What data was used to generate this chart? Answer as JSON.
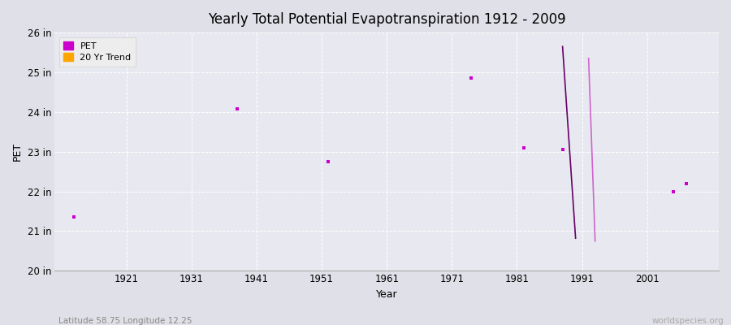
{
  "title": "Yearly Total Potential Evapotranspiration 1912 - 2009",
  "xlabel": "Year",
  "ylabel": "PET",
  "xlim": [
    1910,
    2012
  ],
  "ylim": [
    20,
    26
  ],
  "yticks": [
    20,
    21,
    22,
    23,
    24,
    25,
    26
  ],
  "ytick_labels": [
    "20 in",
    "21 in",
    "22 in",
    "23 in",
    "24 in",
    "25 in",
    "26 in"
  ],
  "xticks": [
    1921,
    1931,
    1941,
    1951,
    1961,
    1971,
    1981,
    1991,
    2001
  ],
  "bg_color": "#e0e0e8",
  "plot_bg_color": "#e8e8f0",
  "grid_color": "#ffffff",
  "pet_color": "#cc00cc",
  "trend_color_dark": "#660066",
  "trend_color_light": "#cc66cc",
  "pet_points": [
    [
      1913,
      21.35
    ],
    [
      1938,
      24.08
    ],
    [
      1952,
      22.75
    ],
    [
      1974,
      24.85
    ],
    [
      1982,
      23.1
    ],
    [
      1988,
      23.05
    ],
    [
      2005,
      22.0
    ],
    [
      2007,
      22.2
    ]
  ],
  "trend_line_dark": [
    [
      1988,
      25.65
    ],
    [
      1990,
      20.82
    ]
  ],
  "trend_line_light": [
    [
      1992,
      25.35
    ],
    [
      1993,
      20.75
    ]
  ],
  "footnote_left": "Latitude 58.75 Longitude 12.25",
  "footnote_right": "worldspecies.org",
  "legend_pet_label": "PET",
  "legend_trend_label": "20 Yr Trend",
  "legend_pet_color": "#cc00cc",
  "legend_trend_color": "#FFA500"
}
